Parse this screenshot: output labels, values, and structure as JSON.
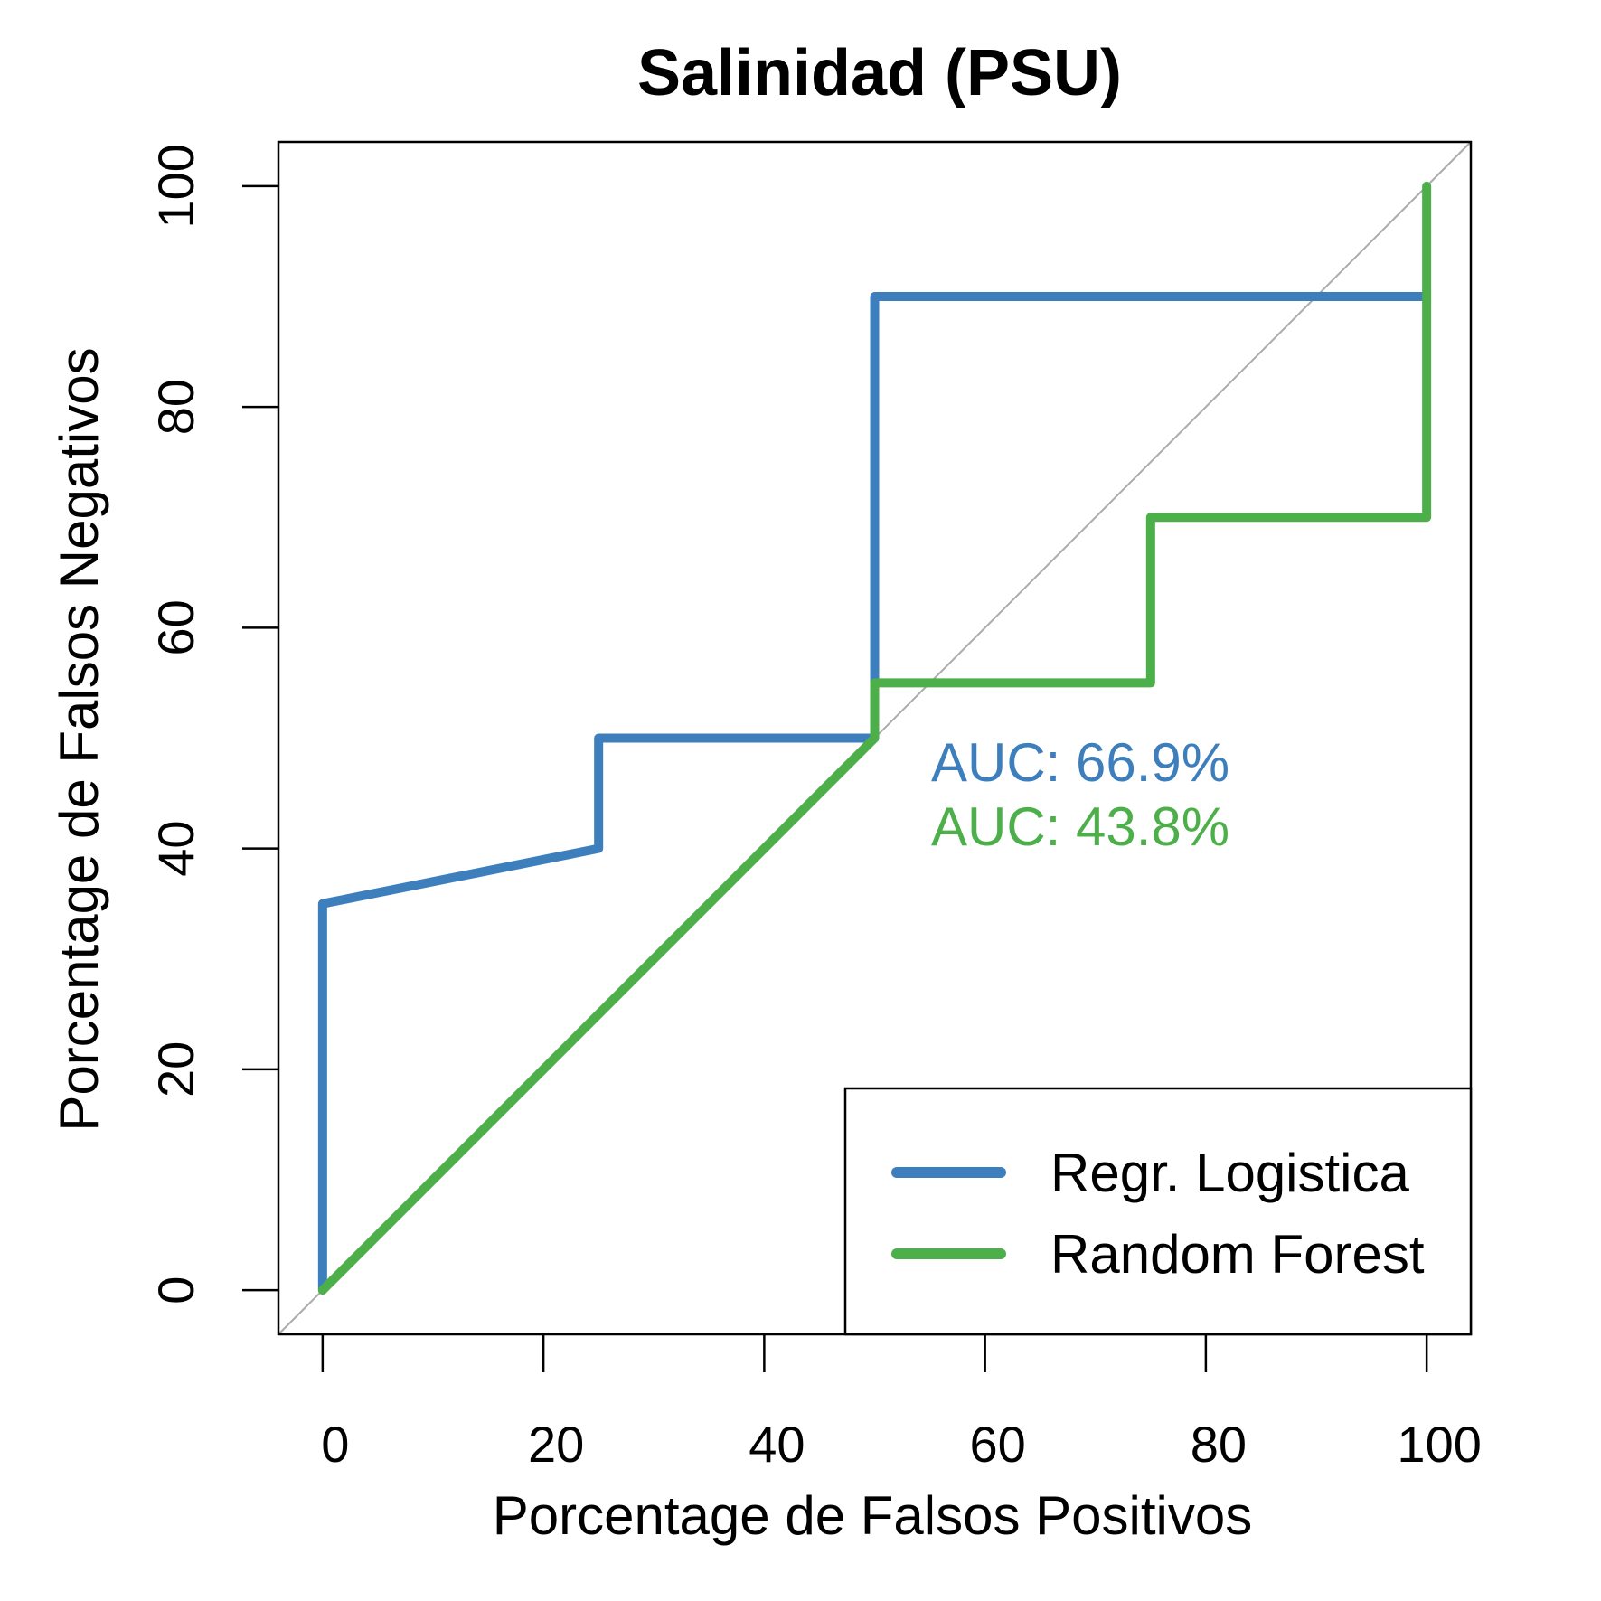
{
  "chart_data": {
    "type": "line",
    "title": "Salinidad (PSU)",
    "xlabel": "Porcentage de Falsos Positivos",
    "ylabel": "Porcentage de Falsos Negativos",
    "xlim": [
      -4,
      104
    ],
    "ylim": [
      -4,
      104
    ],
    "x_ticks": [
      0,
      20,
      40,
      60,
      80,
      100
    ],
    "y_ticks": [
      0,
      20,
      40,
      60,
      80,
      100
    ],
    "x_tick_labels": [
      "0",
      "20",
      "40",
      "60",
      "80",
      "100"
    ],
    "y_tick_labels": [
      "0",
      "20",
      "40",
      "60",
      "80",
      "100"
    ],
    "grid": false,
    "reference_line": {
      "x": [
        -4,
        104
      ],
      "y": [
        -4,
        104
      ],
      "color": "#aaaaaa"
    },
    "series": [
      {
        "name": "Regr. Logistica",
        "color": "#3d7fbd",
        "x": [
          0,
          0,
          25,
          25,
          50,
          50,
          100
        ],
        "y": [
          0,
          35,
          40,
          50,
          50,
          90,
          90
        ]
      },
      {
        "name": "Random Forest",
        "color": "#4daf4a",
        "x": [
          0,
          50,
          50,
          75,
          75,
          100,
          100
        ],
        "y": [
          0,
          50,
          55,
          55,
          70,
          70,
          100
        ]
      }
    ],
    "annotations": [
      {
        "text": "AUC: 66.9%",
        "color": "#3d7fbd"
      },
      {
        "text": "AUC: 43.8%",
        "color": "#4daf4a"
      }
    ],
    "legend": {
      "position": "bottom-right",
      "entries": [
        "Regr. Logistica",
        "Random Forest"
      ]
    }
  }
}
